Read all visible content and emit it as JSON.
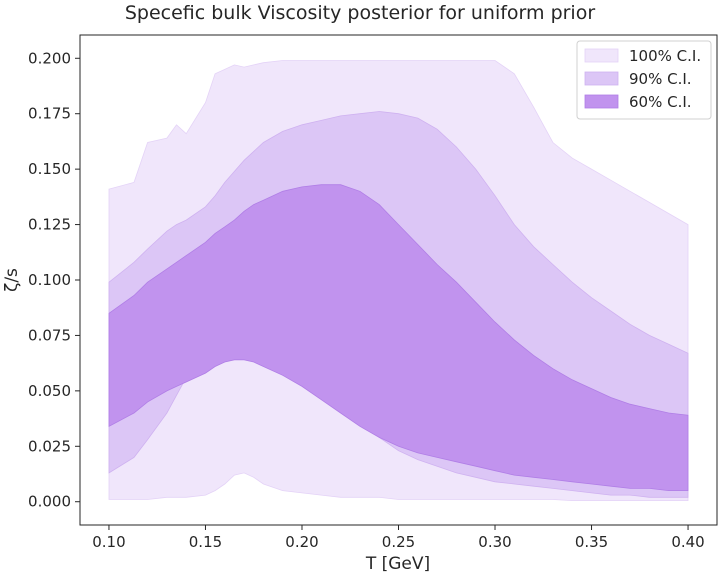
{
  "chart_data": {
    "type": "area",
    "title": "Specefic bulk Viscosity posterior for uniform prior",
    "xlabel": "T [GeV]",
    "ylabel": "ζ/s",
    "xlim": [
      0.085,
      0.415
    ],
    "ylim": [
      -0.0105,
      0.2105
    ],
    "xticks": [
      0.1,
      0.15,
      0.2,
      0.25,
      0.3,
      0.35,
      0.4
    ],
    "xtick_labels": [
      "0.10",
      "0.15",
      "0.20",
      "0.25",
      "0.30",
      "0.35",
      "0.40"
    ],
    "yticks": [
      0.0,
      0.025,
      0.05,
      0.075,
      0.1,
      0.125,
      0.15,
      0.175,
      0.2
    ],
    "ytick_labels": [
      "0.000",
      "0.025",
      "0.050",
      "0.075",
      "0.100",
      "0.125",
      "0.150",
      "0.175",
      "0.200"
    ],
    "grid": false,
    "legend_position": "upper right",
    "x": [
      0.1,
      0.113,
      0.12,
      0.13,
      0.135,
      0.14,
      0.15,
      0.155,
      0.16,
      0.165,
      0.17,
      0.175,
      0.18,
      0.19,
      0.2,
      0.21,
      0.22,
      0.23,
      0.24,
      0.25,
      0.26,
      0.27,
      0.28,
      0.29,
      0.3,
      0.31,
      0.32,
      0.33,
      0.34,
      0.35,
      0.36,
      0.37,
      0.38,
      0.39,
      0.4
    ],
    "series": [
      {
        "name": "100% C.I.",
        "color": "#f0e6fb",
        "stroke": "#e4d3f7",
        "upper": [
          0.141,
          0.144,
          0.162,
          0.164,
          0.17,
          0.166,
          0.18,
          0.193,
          0.195,
          0.197,
          0.196,
          0.197,
          0.198,
          0.199,
          0.199,
          0.199,
          0.199,
          0.199,
          0.199,
          0.199,
          0.199,
          0.199,
          0.199,
          0.199,
          0.199,
          0.193,
          0.178,
          0.162,
          0.155,
          0.15,
          0.145,
          0.14,
          0.135,
          0.13,
          0.125
        ],
        "lower": [
          0.001,
          0.001,
          0.001,
          0.002,
          0.002,
          0.002,
          0.003,
          0.005,
          0.008,
          0.012,
          0.013,
          0.011,
          0.008,
          0.005,
          0.004,
          0.003,
          0.002,
          0.002,
          0.002,
          0.001,
          0.001,
          0.001,
          0.001,
          0.001,
          0.001,
          0.001,
          0.001,
          0.001,
          0.0005,
          0.0005,
          0.0005,
          0.0005,
          0.0005,
          0.0005,
          0.0005
        ]
      },
      {
        "name": "90% C.I.",
        "color": "#dcc6f6",
        "stroke": "#cfb2f0",
        "upper": [
          0.099,
          0.108,
          0.114,
          0.122,
          0.125,
          0.127,
          0.133,
          0.138,
          0.144,
          0.149,
          0.154,
          0.158,
          0.162,
          0.167,
          0.17,
          0.172,
          0.174,
          0.175,
          0.176,
          0.175,
          0.173,
          0.168,
          0.16,
          0.15,
          0.138,
          0.125,
          0.115,
          0.107,
          0.099,
          0.092,
          0.086,
          0.08,
          0.075,
          0.071,
          0.067
        ],
        "lower": [
          0.013,
          0.02,
          0.028,
          0.04,
          0.048,
          0.056,
          0.068,
          0.075,
          0.079,
          0.082,
          0.082,
          0.081,
          0.079,
          0.072,
          0.064,
          0.054,
          0.045,
          0.036,
          0.029,
          0.023,
          0.019,
          0.016,
          0.013,
          0.011,
          0.009,
          0.008,
          0.007,
          0.006,
          0.005,
          0.004,
          0.003,
          0.003,
          0.002,
          0.002,
          0.002
        ]
      },
      {
        "name": "60% C.I.",
        "color": "#c193ee",
        "stroke": "#b07ee6",
        "upper": [
          0.085,
          0.093,
          0.099,
          0.105,
          0.108,
          0.111,
          0.117,
          0.121,
          0.124,
          0.127,
          0.131,
          0.134,
          0.136,
          0.14,
          0.142,
          0.143,
          0.143,
          0.14,
          0.134,
          0.125,
          0.116,
          0.107,
          0.099,
          0.09,
          0.081,
          0.073,
          0.066,
          0.06,
          0.055,
          0.051,
          0.047,
          0.044,
          0.042,
          0.04,
          0.039
        ],
        "lower": [
          0.034,
          0.04,
          0.045,
          0.05,
          0.052,
          0.054,
          0.058,
          0.061,
          0.063,
          0.064,
          0.064,
          0.063,
          0.061,
          0.057,
          0.052,
          0.046,
          0.04,
          0.034,
          0.029,
          0.025,
          0.022,
          0.02,
          0.018,
          0.016,
          0.014,
          0.012,
          0.011,
          0.01,
          0.009,
          0.008,
          0.007,
          0.006,
          0.006,
          0.005,
          0.005
        ]
      }
    ]
  }
}
